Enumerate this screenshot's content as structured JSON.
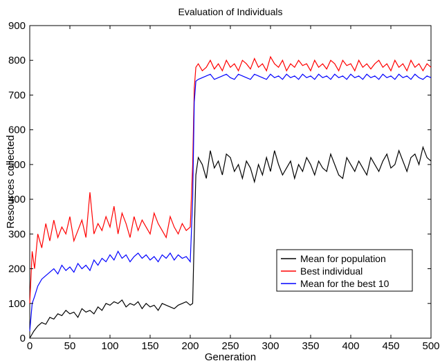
{
  "chart_data": {
    "type": "line",
    "title": "Evaluation of Individuals",
    "xlabel": "Generation",
    "ylabel": "Resources collected",
    "xlim": [
      0,
      500
    ],
    "ylim": [
      0,
      900
    ],
    "xticks": [
      "0",
      "50",
      "100",
      "150",
      "200",
      "250",
      "300",
      "350",
      "400",
      "450",
      "500"
    ],
    "yticks": [
      "0",
      "100",
      "200",
      "300",
      "400",
      "500",
      "600",
      "700",
      "800",
      "900"
    ],
    "grid": false,
    "legend_position": "lower-right",
    "series": [
      {
        "name": "Mean for population",
        "color": "#000000",
        "x": [
          0,
          5,
          10,
          15,
          20,
          25,
          30,
          35,
          40,
          45,
          50,
          55,
          60,
          65,
          70,
          75,
          80,
          85,
          90,
          95,
          100,
          105,
          110,
          115,
          120,
          125,
          130,
          135,
          140,
          145,
          150,
          155,
          160,
          165,
          170,
          175,
          180,
          185,
          190,
          195,
          200,
          203,
          205,
          207,
          210,
          215,
          220,
          225,
          230,
          235,
          240,
          245,
          250,
          255,
          260,
          265,
          270,
          275,
          280,
          285,
          290,
          295,
          300,
          305,
          310,
          315,
          320,
          325,
          330,
          335,
          340,
          345,
          350,
          355,
          360,
          365,
          370,
          375,
          380,
          385,
          390,
          395,
          400,
          405,
          410,
          415,
          420,
          425,
          430,
          435,
          440,
          445,
          450,
          455,
          460,
          465,
          470,
          475,
          480,
          485,
          490,
          495,
          500
        ],
        "y": [
          0,
          20,
          35,
          45,
          40,
          60,
          55,
          70,
          65,
          80,
          70,
          75,
          60,
          85,
          75,
          80,
          70,
          90,
          80,
          100,
          95,
          105,
          100,
          110,
          90,
          100,
          95,
          105,
          85,
          100,
          90,
          95,
          80,
          100,
          95,
          90,
          85,
          95,
          100,
          105,
          95,
          100,
          300,
          470,
          520,
          500,
          460,
          540,
          490,
          510,
          470,
          530,
          520,
          480,
          500,
          460,
          510,
          490,
          450,
          500,
          470,
          520,
          480,
          540,
          500,
          470,
          490,
          510,
          460,
          500,
          480,
          520,
          500,
          470,
          510,
          490,
          480,
          530,
          500,
          470,
          460,
          520,
          500,
          480,
          510,
          490,
          470,
          520,
          500,
          480,
          510,
          530,
          490,
          500,
          540,
          510,
          480,
          520,
          530,
          500,
          550,
          520,
          510
        ]
      },
      {
        "name": "Best individual",
        "color": "#ff0000",
        "x": [
          0,
          3,
          6,
          10,
          15,
          20,
          25,
          30,
          35,
          40,
          45,
          50,
          55,
          60,
          65,
          70,
          75,
          80,
          85,
          90,
          95,
          100,
          105,
          110,
          115,
          120,
          125,
          130,
          135,
          140,
          145,
          150,
          155,
          160,
          165,
          170,
          175,
          180,
          185,
          190,
          195,
          200,
          203,
          205,
          207,
          210,
          215,
          220,
          225,
          230,
          235,
          240,
          245,
          250,
          255,
          260,
          265,
          270,
          275,
          280,
          285,
          290,
          295,
          300,
          305,
          310,
          315,
          320,
          325,
          330,
          335,
          340,
          345,
          350,
          355,
          360,
          365,
          370,
          375,
          380,
          385,
          390,
          395,
          400,
          405,
          410,
          415,
          420,
          425,
          430,
          435,
          440,
          445,
          450,
          455,
          460,
          465,
          470,
          475,
          480,
          485,
          490,
          495,
          500
        ],
        "y": [
          100,
          250,
          200,
          300,
          260,
          330,
          280,
          340,
          290,
          320,
          300,
          350,
          280,
          310,
          340,
          290,
          420,
          300,
          330,
          310,
          350,
          320,
          380,
          300,
          360,
          330,
          290,
          350,
          310,
          340,
          320,
          300,
          360,
          330,
          310,
          290,
          350,
          320,
          300,
          330,
          310,
          320,
          500,
          720,
          780,
          790,
          770,
          780,
          800,
          775,
          790,
          770,
          800,
          780,
          790,
          770,
          800,
          790,
          775,
          805,
          780,
          790,
          770,
          810,
          790,
          780,
          800,
          770,
          790,
          780,
          800,
          785,
          790,
          770,
          800,
          780,
          790,
          775,
          800,
          790,
          770,
          800,
          785,
          790,
          770,
          800,
          780,
          790,
          775,
          790,
          800,
          780,
          790,
          770,
          800,
          780,
          790,
          770,
          800,
          780,
          790,
          770,
          790,
          780
        ]
      },
      {
        "name": "Mean for the best 10",
        "color": "#0000ff",
        "x": [
          0,
          3,
          6,
          10,
          15,
          20,
          25,
          30,
          35,
          40,
          45,
          50,
          55,
          60,
          65,
          70,
          75,
          80,
          85,
          90,
          95,
          100,
          105,
          110,
          115,
          120,
          125,
          130,
          135,
          140,
          145,
          150,
          155,
          160,
          165,
          170,
          175,
          180,
          185,
          190,
          195,
          200,
          203,
          205,
          207,
          210,
          215,
          220,
          225,
          230,
          235,
          240,
          245,
          250,
          255,
          260,
          265,
          270,
          275,
          280,
          285,
          290,
          295,
          300,
          305,
          310,
          315,
          320,
          325,
          330,
          335,
          340,
          345,
          350,
          355,
          360,
          365,
          370,
          375,
          380,
          385,
          390,
          395,
          400,
          405,
          410,
          415,
          420,
          425,
          430,
          435,
          440,
          445,
          450,
          455,
          460,
          465,
          470,
          475,
          480,
          485,
          490,
          495,
          500
        ],
        "y": [
          20,
          100,
          120,
          150,
          170,
          180,
          190,
          200,
          185,
          210,
          195,
          205,
          190,
          215,
          200,
          210,
          195,
          225,
          210,
          230,
          220,
          240,
          225,
          250,
          230,
          240,
          220,
          235,
          245,
          230,
          240,
          225,
          235,
          220,
          240,
          230,
          245,
          225,
          240,
          230,
          235,
          220,
          400,
          680,
          740,
          745,
          750,
          755,
          760,
          745,
          750,
          755,
          760,
          750,
          745,
          760,
          755,
          750,
          745,
          760,
          755,
          750,
          745,
          760,
          750,
          755,
          745,
          760,
          750,
          755,
          745,
          760,
          750,
          755,
          745,
          760,
          750,
          755,
          745,
          760,
          750,
          755,
          745,
          760,
          750,
          755,
          745,
          760,
          750,
          755,
          745,
          760,
          750,
          755,
          745,
          760,
          750,
          755,
          745,
          760,
          750,
          745,
          755,
          750
        ]
      }
    ]
  }
}
